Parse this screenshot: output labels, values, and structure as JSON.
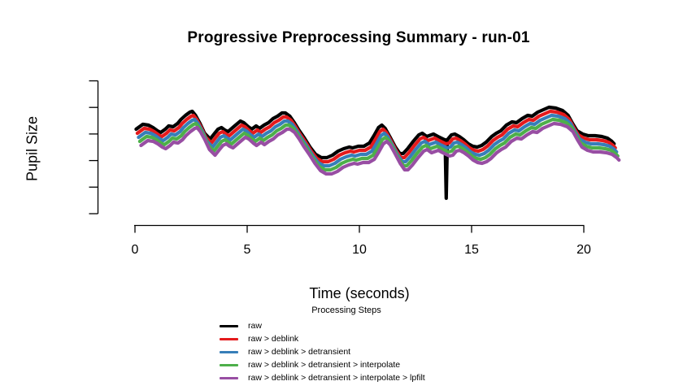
{
  "chart_data": {
    "type": "line",
    "title": "Progressive Preprocessing Summary - run-01",
    "xlabel": "Time (seconds)",
    "ylabel": "Pupil Size",
    "x_ticks": [
      0,
      5,
      10,
      15,
      20
    ],
    "x_range_seconds": [
      0,
      21.4
    ],
    "y_axis": {
      "tick_count": 6,
      "tick_labels_shown": false,
      "units": "arbitrary (axis is unlabeled)"
    },
    "legend": {
      "title": "Processing Steps"
    },
    "series": [
      {
        "name": "raw",
        "color": "#000000",
        "has_blink_spike": true
      },
      {
        "name": "raw > deblink",
        "color": "#E41A1C",
        "has_blink_spike": false
      },
      {
        "name": "raw > deblink > detransient",
        "color": "#377EB8",
        "has_blink_spike": false
      },
      {
        "name": "raw > deblink > detransient > interpolate",
        "color": "#4DAF4A",
        "has_blink_spike": false
      },
      {
        "name": "raw > deblink > detransient > interpolate > lpfilt",
        "color": "#984EA3",
        "has_blink_spike": false
      }
    ],
    "stack_offset_note": "each successive processing step is drawn slightly below the previous trace so all five overlapping traces stay visible",
    "base_trace_t_v": [
      [
        0.05,
        104
      ],
      [
        0.35,
        110
      ],
      [
        0.6,
        109
      ],
      [
        0.8,
        106
      ],
      [
        1.0,
        102
      ],
      [
        1.15,
        100
      ],
      [
        1.35,
        104
      ],
      [
        1.5,
        108
      ],
      [
        1.7,
        107
      ],
      [
        1.9,
        111
      ],
      [
        2.05,
        116
      ],
      [
        2.25,
        121
      ],
      [
        2.45,
        125
      ],
      [
        2.55,
        126
      ],
      [
        2.7,
        121
      ],
      [
        2.9,
        111
      ],
      [
        3.1,
        99
      ],
      [
        3.35,
        92
      ],
      [
        3.55,
        99
      ],
      [
        3.7,
        104
      ],
      [
        3.85,
        106
      ],
      [
        4.0,
        103
      ],
      [
        4.15,
        101
      ],
      [
        4.4,
        107
      ],
      [
        4.7,
        114
      ],
      [
        4.85,
        112
      ],
      [
        5.05,
        107
      ],
      [
        5.2,
        104
      ],
      [
        5.4,
        108
      ],
      [
        5.55,
        105
      ],
      [
        5.75,
        109
      ],
      [
        5.95,
        112
      ],
      [
        6.15,
        117
      ],
      [
        6.35,
        120
      ],
      [
        6.55,
        124
      ],
      [
        6.7,
        124
      ],
      [
        6.9,
        120
      ],
      [
        7.1,
        112
      ],
      [
        7.3,
        103
      ],
      [
        7.55,
        93
      ],
      [
        7.8,
        82
      ],
      [
        8.05,
        73
      ],
      [
        8.3,
        69
      ],
      [
        8.55,
        69
      ],
      [
        8.8,
        72
      ],
      [
        9.05,
        77
      ],
      [
        9.3,
        80
      ],
      [
        9.55,
        82
      ],
      [
        9.7,
        81
      ],
      [
        9.95,
        83
      ],
      [
        10.2,
        83
      ],
      [
        10.45,
        87
      ],
      [
        10.65,
        96
      ],
      [
        10.85,
        106
      ],
      [
        11.0,
        109
      ],
      [
        11.15,
        105
      ],
      [
        11.35,
        95
      ],
      [
        11.6,
        82
      ],
      [
        11.8,
        74
      ],
      [
        11.95,
        74
      ],
      [
        12.15,
        80
      ],
      [
        12.4,
        89
      ],
      [
        12.65,
        97
      ],
      [
        12.8,
        99
      ],
      [
        13.0,
        95
      ],
      [
        13.2,
        97
      ],
      [
        13.3,
        98
      ],
      [
        13.5,
        95
      ],
      [
        13.65,
        93
      ],
      [
        13.8,
        91
      ],
      [
        13.95,
        92
      ],
      [
        14.1,
        97
      ],
      [
        14.25,
        98
      ],
      [
        14.45,
        95
      ],
      [
        14.65,
        91
      ],
      [
        14.85,
        86
      ],
      [
        15.05,
        83
      ],
      [
        15.25,
        82
      ],
      [
        15.45,
        84
      ],
      [
        15.65,
        88
      ],
      [
        15.9,
        95
      ],
      [
        16.1,
        99
      ],
      [
        16.3,
        102
      ],
      [
        16.55,
        109
      ],
      [
        16.8,
        113
      ],
      [
        17.0,
        112
      ],
      [
        17.25,
        117
      ],
      [
        17.5,
        121
      ],
      [
        17.7,
        120
      ],
      [
        17.95,
        125
      ],
      [
        18.2,
        128
      ],
      [
        18.45,
        131
      ],
      [
        18.75,
        130
      ],
      [
        19.05,
        127
      ],
      [
        19.3,
        121
      ],
      [
        19.5,
        111
      ],
      [
        19.7,
        102
      ],
      [
        19.95,
        98
      ],
      [
        20.2,
        96
      ],
      [
        20.5,
        96
      ],
      [
        20.8,
        95
      ],
      [
        21.05,
        93
      ],
      [
        21.25,
        89
      ],
      [
        21.35,
        86
      ]
    ],
    "blink_spike_t_v": [
      [
        13.82,
        91
      ],
      [
        13.87,
        19
      ],
      [
        13.92,
        91
      ]
    ]
  }
}
